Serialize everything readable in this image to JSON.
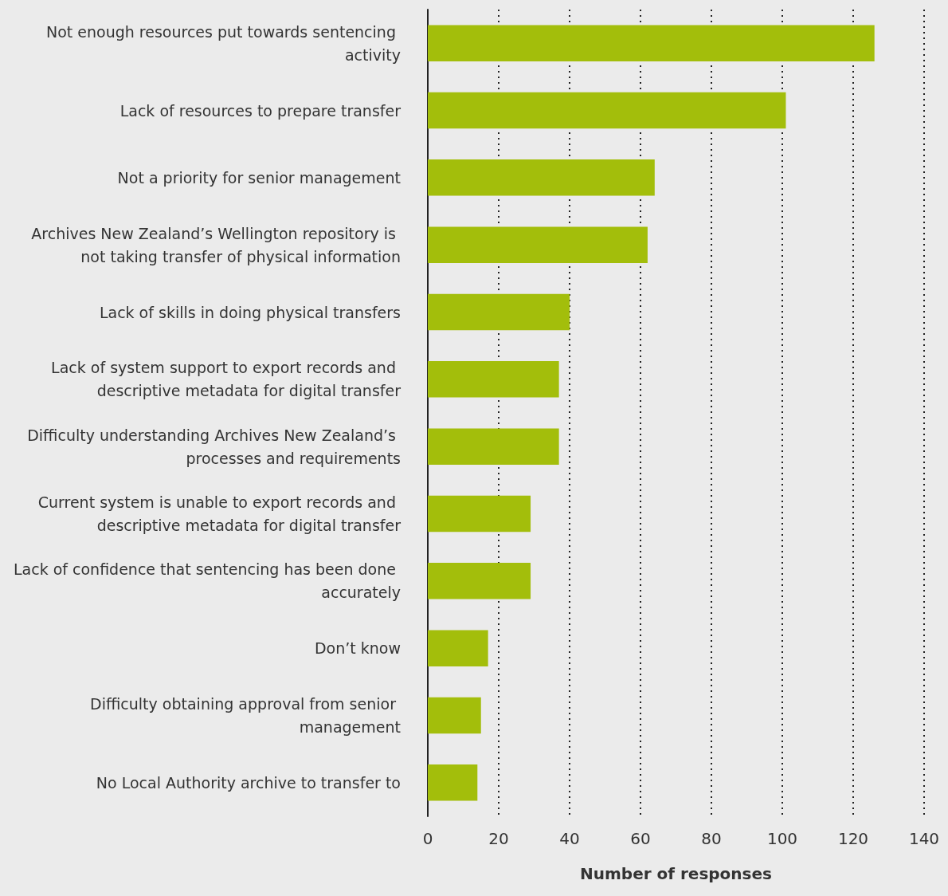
{
  "chart_data": {
    "type": "bar",
    "orientation": "horizontal",
    "xlabel": "Number of responses",
    "categories": [
      "Not enough resources put towards sentencing activity",
      "Lack of resources to prepare transfer",
      "Not a priority for senior management",
      "Archives New Zealand’s Wellington repository is not taking transfer of physical information",
      "Lack of skills in doing physical transfers",
      "Lack of system support to export records and descriptive metadata for digital transfer",
      "Difficulty understanding Archives New Zealand’s processes and requirements",
      "Current system is unable to export records and descriptive metadata for digital transfer",
      "Lack of confidence that sentencing has been done accurately",
      "Don’t know",
      "Difficulty obtaining approval from senior management",
      "No Local Authority archive to transfer to"
    ],
    "values": [
      126,
      101,
      64,
      62,
      40,
      37,
      37,
      29,
      29,
      17,
      15,
      14
    ],
    "color": "#a3be0b",
    "xlim": [
      0,
      140
    ],
    "xticks": [
      0,
      20,
      40,
      60,
      80,
      100,
      120,
      140
    ],
    "grid": "x"
  }
}
